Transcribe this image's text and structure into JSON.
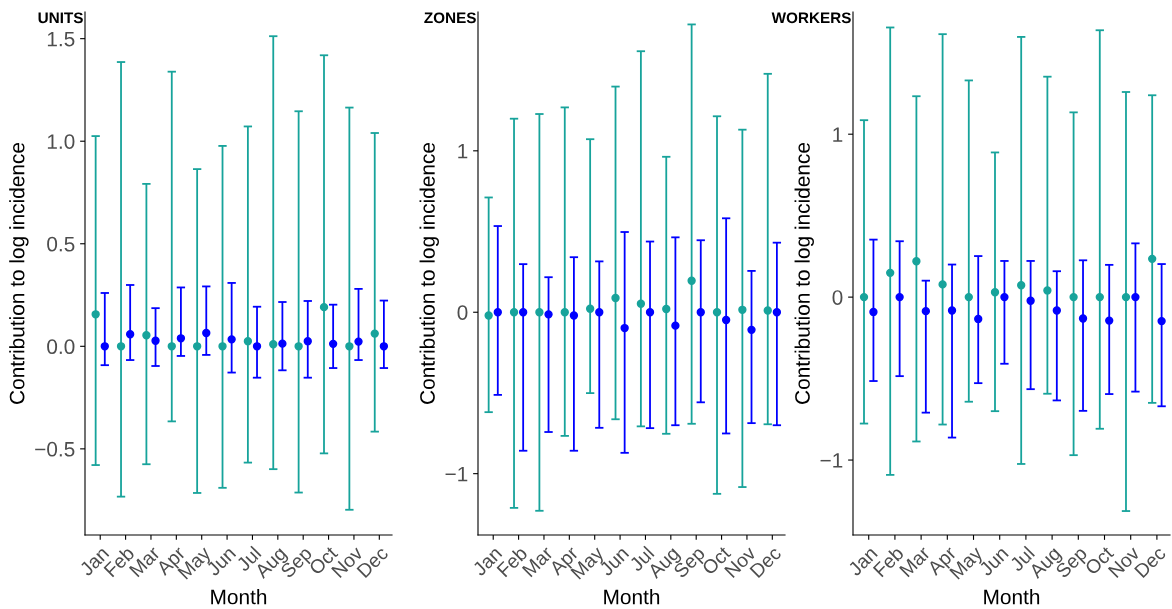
{
  "chart_data": [
    {
      "type": "scatter",
      "title": "UNITS",
      "xlabel": "Month",
      "ylabel": "Contribution to log incidence",
      "categories": [
        "Jan",
        "Feb",
        "Mar",
        "Apr",
        "May",
        "Jun",
        "Jul",
        "Aug",
        "Sep",
        "Oct",
        "Nov",
        "Dec"
      ],
      "ylim": [
        -0.92,
        1.63
      ],
      "yticks": [
        {
          "value": -0.5,
          "label": "−0.5"
        },
        {
          "value": 0,
          "label": "0.0"
        },
        {
          "value": 0.5,
          "label": "0.5"
        },
        {
          "value": 1,
          "label": "1.0"
        },
        {
          "value": 1.5,
          "label": "1.5"
        }
      ],
      "grid": false,
      "marker": "circle",
      "series": [
        {
          "color": "#17a39b",
          "values": [
            0.156,
            0,
            0.054,
            0,
            0,
            0,
            0.025,
            0.01,
            0,
            0.191,
            0,
            0.062
          ],
          "errors": [
            [
              -0.579,
              1.025
            ],
            [
              -0.733,
              1.386
            ],
            [
              -0.575,
              0.792
            ],
            [
              -0.366,
              1.339
            ],
            [
              -0.715,
              0.864
            ],
            [
              -0.69,
              0.977
            ],
            [
              -0.567,
              1.072
            ],
            [
              -0.599,
              1.512
            ],
            [
              -0.713,
              1.146
            ],
            [
              -0.522,
              1.419
            ],
            [
              -0.797,
              1.164
            ],
            [
              -0.416,
              1.04
            ]
          ]
        },
        {
          "color": "#0000ff",
          "values": [
            0,
            0.059,
            0.027,
            0.039,
            0.065,
            0.034,
            0,
            0.013,
            0.025,
            0.012,
            0.023,
            0
          ],
          "errors": [
            [
              -0.092,
              0.26
            ],
            [
              -0.067,
              0.299
            ],
            [
              -0.096,
              0.186
            ],
            [
              -0.047,
              0.287
            ],
            [
              -0.042,
              0.292
            ],
            [
              -0.128,
              0.309
            ],
            [
              -0.153,
              0.193
            ],
            [
              -0.117,
              0.216
            ],
            [
              -0.153,
              0.221
            ],
            [
              -0.106,
              0.203
            ],
            [
              -0.067,
              0.28
            ],
            [
              -0.106,
              0.223
            ]
          ]
        }
      ]
    },
    {
      "type": "scatter",
      "title": "ZONES",
      "xlabel": "Month",
      "ylabel": "Contribution to log incidence",
      "categories": [
        "Jan",
        "Feb",
        "Mar",
        "Apr",
        "May",
        "Jun",
        "Jul",
        "Aug",
        "Sep",
        "Oct",
        "Nov",
        "Dec"
      ],
      "ylim": [
        -1.38,
        1.86
      ],
      "yticks": [
        {
          "value": -1,
          "label": "−1"
        },
        0,
        1
      ],
      "grid": false,
      "marker": "circle",
      "series": [
        {
          "color": "#17a39b",
          "values": [
            -0.02,
            0,
            0,
            0,
            0.022,
            0.088,
            0.053,
            0.02,
            0.195,
            0,
            0.015,
            0.011
          ],
          "errors": [
            [
              -0.619,
              0.711
            ],
            [
              -1.212,
              1.199
            ],
            [
              -1.23,
              1.228
            ],
            [
              -0.766,
              1.269
            ],
            [
              -0.501,
              1.072
            ],
            [
              -0.663,
              1.398
            ],
            [
              -0.707,
              1.617
            ],
            [
              -0.753,
              0.963
            ],
            [
              -0.691,
              1.783
            ],
            [
              -1.125,
              1.214
            ],
            [
              -1.083,
              1.131
            ],
            [
              -0.694,
              1.477
            ]
          ]
        },
        {
          "color": "#0000ff",
          "values": [
            0,
            0,
            -0.013,
            -0.02,
            0,
            -0.098,
            0,
            -0.083,
            0,
            -0.048,
            -0.109,
            0
          ],
          "errors": [
            [
              -0.512,
              0.534
            ],
            [
              -0.858,
              0.298
            ],
            [
              -0.742,
              0.217
            ],
            [
              -0.858,
              0.341
            ],
            [
              -0.716,
              0.315
            ],
            [
              -0.871,
              0.497
            ],
            [
              -0.718,
              0.438
            ],
            [
              -0.7,
              0.464
            ],
            [
              -0.558,
              0.446
            ],
            [
              -0.751,
              0.582
            ],
            [
              -0.687,
              0.256
            ],
            [
              -0.7,
              0.431
            ]
          ]
        }
      ]
    },
    {
      "type": "scatter",
      "title": "WORKERS",
      "xlabel": "Month",
      "ylabel": "Contribution to log incidence",
      "categories": [
        "Jan",
        "Feb",
        "Mar",
        "Apr",
        "May",
        "Jun",
        "Jul",
        "Aug",
        "Sep",
        "Oct",
        "Nov",
        "Dec"
      ],
      "ylim": [
        -1.46,
        1.75
      ],
      "yticks": [
        {
          "value": -1,
          "label": "−1"
        },
        0,
        1
      ],
      "grid": false,
      "marker": "circle",
      "series": [
        {
          "color": "#17a39b",
          "values": [
            0,
            0.149,
            0.22,
            0.078,
            0,
            0.03,
            0.073,
            0.041,
            0,
            0,
            0,
            0.235
          ],
          "errors": [
            [
              -0.776,
              1.086
            ],
            [
              -1.091,
              1.655
            ],
            [
              -0.886,
              1.233
            ],
            [
              -0.782,
              1.614
            ],
            [
              -0.642,
              1.33
            ],
            [
              -0.7,
              0.888
            ],
            [
              -1.024,
              1.597
            ],
            [
              -0.593,
              1.353
            ],
            [
              -0.97,
              1.134
            ],
            [
              -0.808,
              1.638
            ],
            [
              -1.313,
              1.259
            ],
            [
              -0.649,
              1.239
            ]
          ]
        },
        {
          "color": "#0000ff",
          "values": [
            -0.091,
            0,
            -0.086,
            -0.082,
            -0.134,
            0,
            -0.022,
            -0.082,
            -0.131,
            -0.144,
            0,
            -0.147
          ],
          "errors": [
            [
              -0.515,
              0.353
            ],
            [
              -0.485,
              0.343
            ],
            [
              -0.709,
              0.101
            ],
            [
              -0.862,
              0.2
            ],
            [
              -0.528,
              0.252
            ],
            [
              -0.409,
              0.222
            ],
            [
              -0.565,
              0.222
            ],
            [
              -0.634,
              0.159
            ],
            [
              -0.698,
              0.226
            ],
            [
              -0.595,
              0.198
            ],
            [
              -0.58,
              0.33
            ],
            [
              -0.67,
              0.203
            ]
          ]
        }
      ]
    }
  ]
}
